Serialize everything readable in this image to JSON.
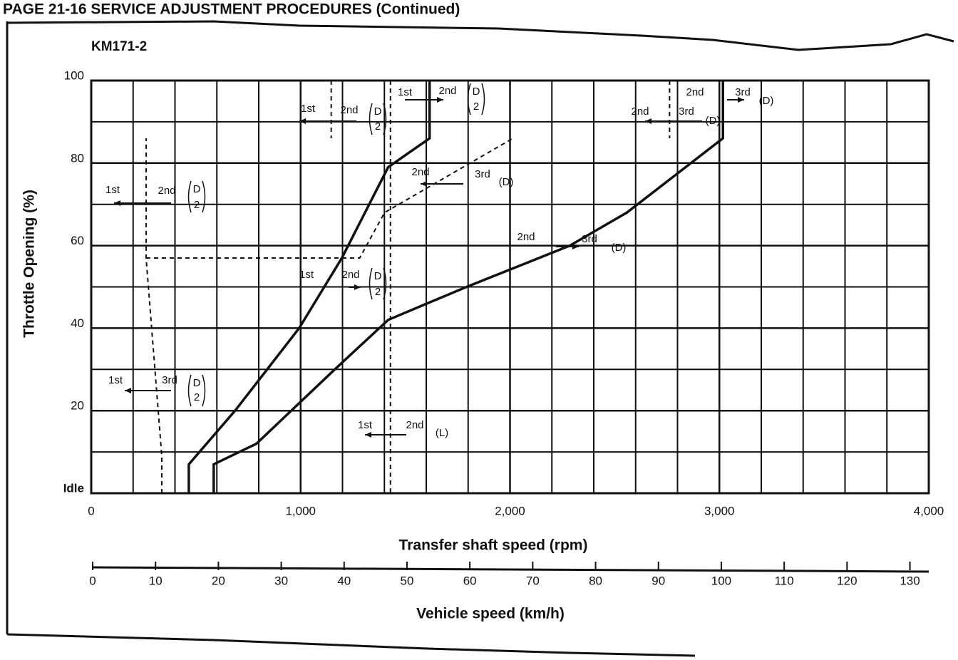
{
  "header": "PAGE 21-16 SERVICE ADJUSTMENT PROCEDURES (Continued)",
  "chart_data": {
    "type": "line",
    "title": "KM171-2",
    "x_label": "Transfer shaft speed (rpm)",
    "y_label": "Throttle Opening (%)",
    "x2_label": "Vehicle speed (km/h)",
    "xlim": [
      0,
      4000
    ],
    "ylim": [
      0,
      100
    ],
    "x2lim": [
      0,
      133
    ],
    "xticks": [
      0,
      {
        "value": 1000,
        "label": "1,000"
      },
      {
        "value": 2000,
        "label": "2,000"
      },
      {
        "value": 3000,
        "label": "3,000"
      },
      {
        "value": 4000,
        "label": "4,000"
      }
    ],
    "yticks": [
      {
        "value": 0,
        "label": "Idle"
      },
      20,
      40,
      60,
      80,
      100
    ],
    "x2ticks": [
      0,
      10,
      20,
      30,
      40,
      50,
      60,
      70,
      80,
      90,
      100,
      110,
      120,
      130
    ],
    "minor_xticks": [
      200,
      400,
      600,
      800,
      1200,
      1400,
      1600,
      1800,
      2200,
      2400,
      2600,
      2800,
      3200,
      3400,
      3600,
      3800
    ],
    "minor_yticks": [
      10,
      30,
      50,
      70,
      90
    ],
    "grid": true,
    "series": [
      {
        "color": "#111",
        "dash": false,
        "x": [
          466,
          466,
          687,
          993,
          1197,
          1418,
          1616,
          1616
        ],
        "values": [
          0,
          7,
          20,
          40,
          57,
          79,
          86,
          100
        ]
      },
      {
        "color": "#111",
        "dash": false,
        "x": [
          585,
          585,
          789,
          1163,
          1418,
          1605,
          1793,
          2286,
          2558,
          3017,
          3017
        ],
        "values": [
          0,
          7,
          12,
          30,
          42,
          46,
          50,
          60,
          68,
          86,
          100
        ]
      },
      {
        "color": "#111",
        "dash": true,
        "x": [
          337,
          337,
          262,
          262
        ],
        "values": [
          0,
          9,
          57,
          86
        ]
      },
      {
        "color": "#111",
        "dash": true,
        "x": [
          262,
          1282,
          1401,
          1605,
          2014
        ],
        "values": [
          57,
          57,
          68,
          74,
          86
        ]
      },
      {
        "color": "#111",
        "dash": true,
        "x": [
          1146,
          1146
        ],
        "values": [
          100,
          86
        ]
      },
      {
        "color": "#111",
        "dash": true,
        "x": [
          1429,
          1429
        ],
        "values": [
          100,
          0
        ]
      },
      {
        "color": "#111",
        "dash": true,
        "x": [
          2762,
          2762
        ],
        "values": [
          100,
          86
        ]
      }
    ],
    "annotations": [
      [
        "1st",
        "2nd",
        "D",
        "2"
      ],
      [
        "1st",
        "2nd",
        "D",
        "2"
      ],
      [
        "2nd",
        "3rd",
        "(D)"
      ],
      [
        "2nd",
        "3rd",
        "(D)"
      ],
      [
        "2nd",
        "3rd",
        "(D)"
      ],
      [
        "1st",
        "2nd",
        "D",
        "2"
      ],
      [
        "2nd",
        "3rd",
        "(D)"
      ],
      [
        "1st",
        "2nd",
        "D",
        "2"
      ],
      [
        "1st",
        "3rd",
        "D",
        "2"
      ],
      [
        "1st",
        "2nd",
        "(L)"
      ]
    ]
  }
}
